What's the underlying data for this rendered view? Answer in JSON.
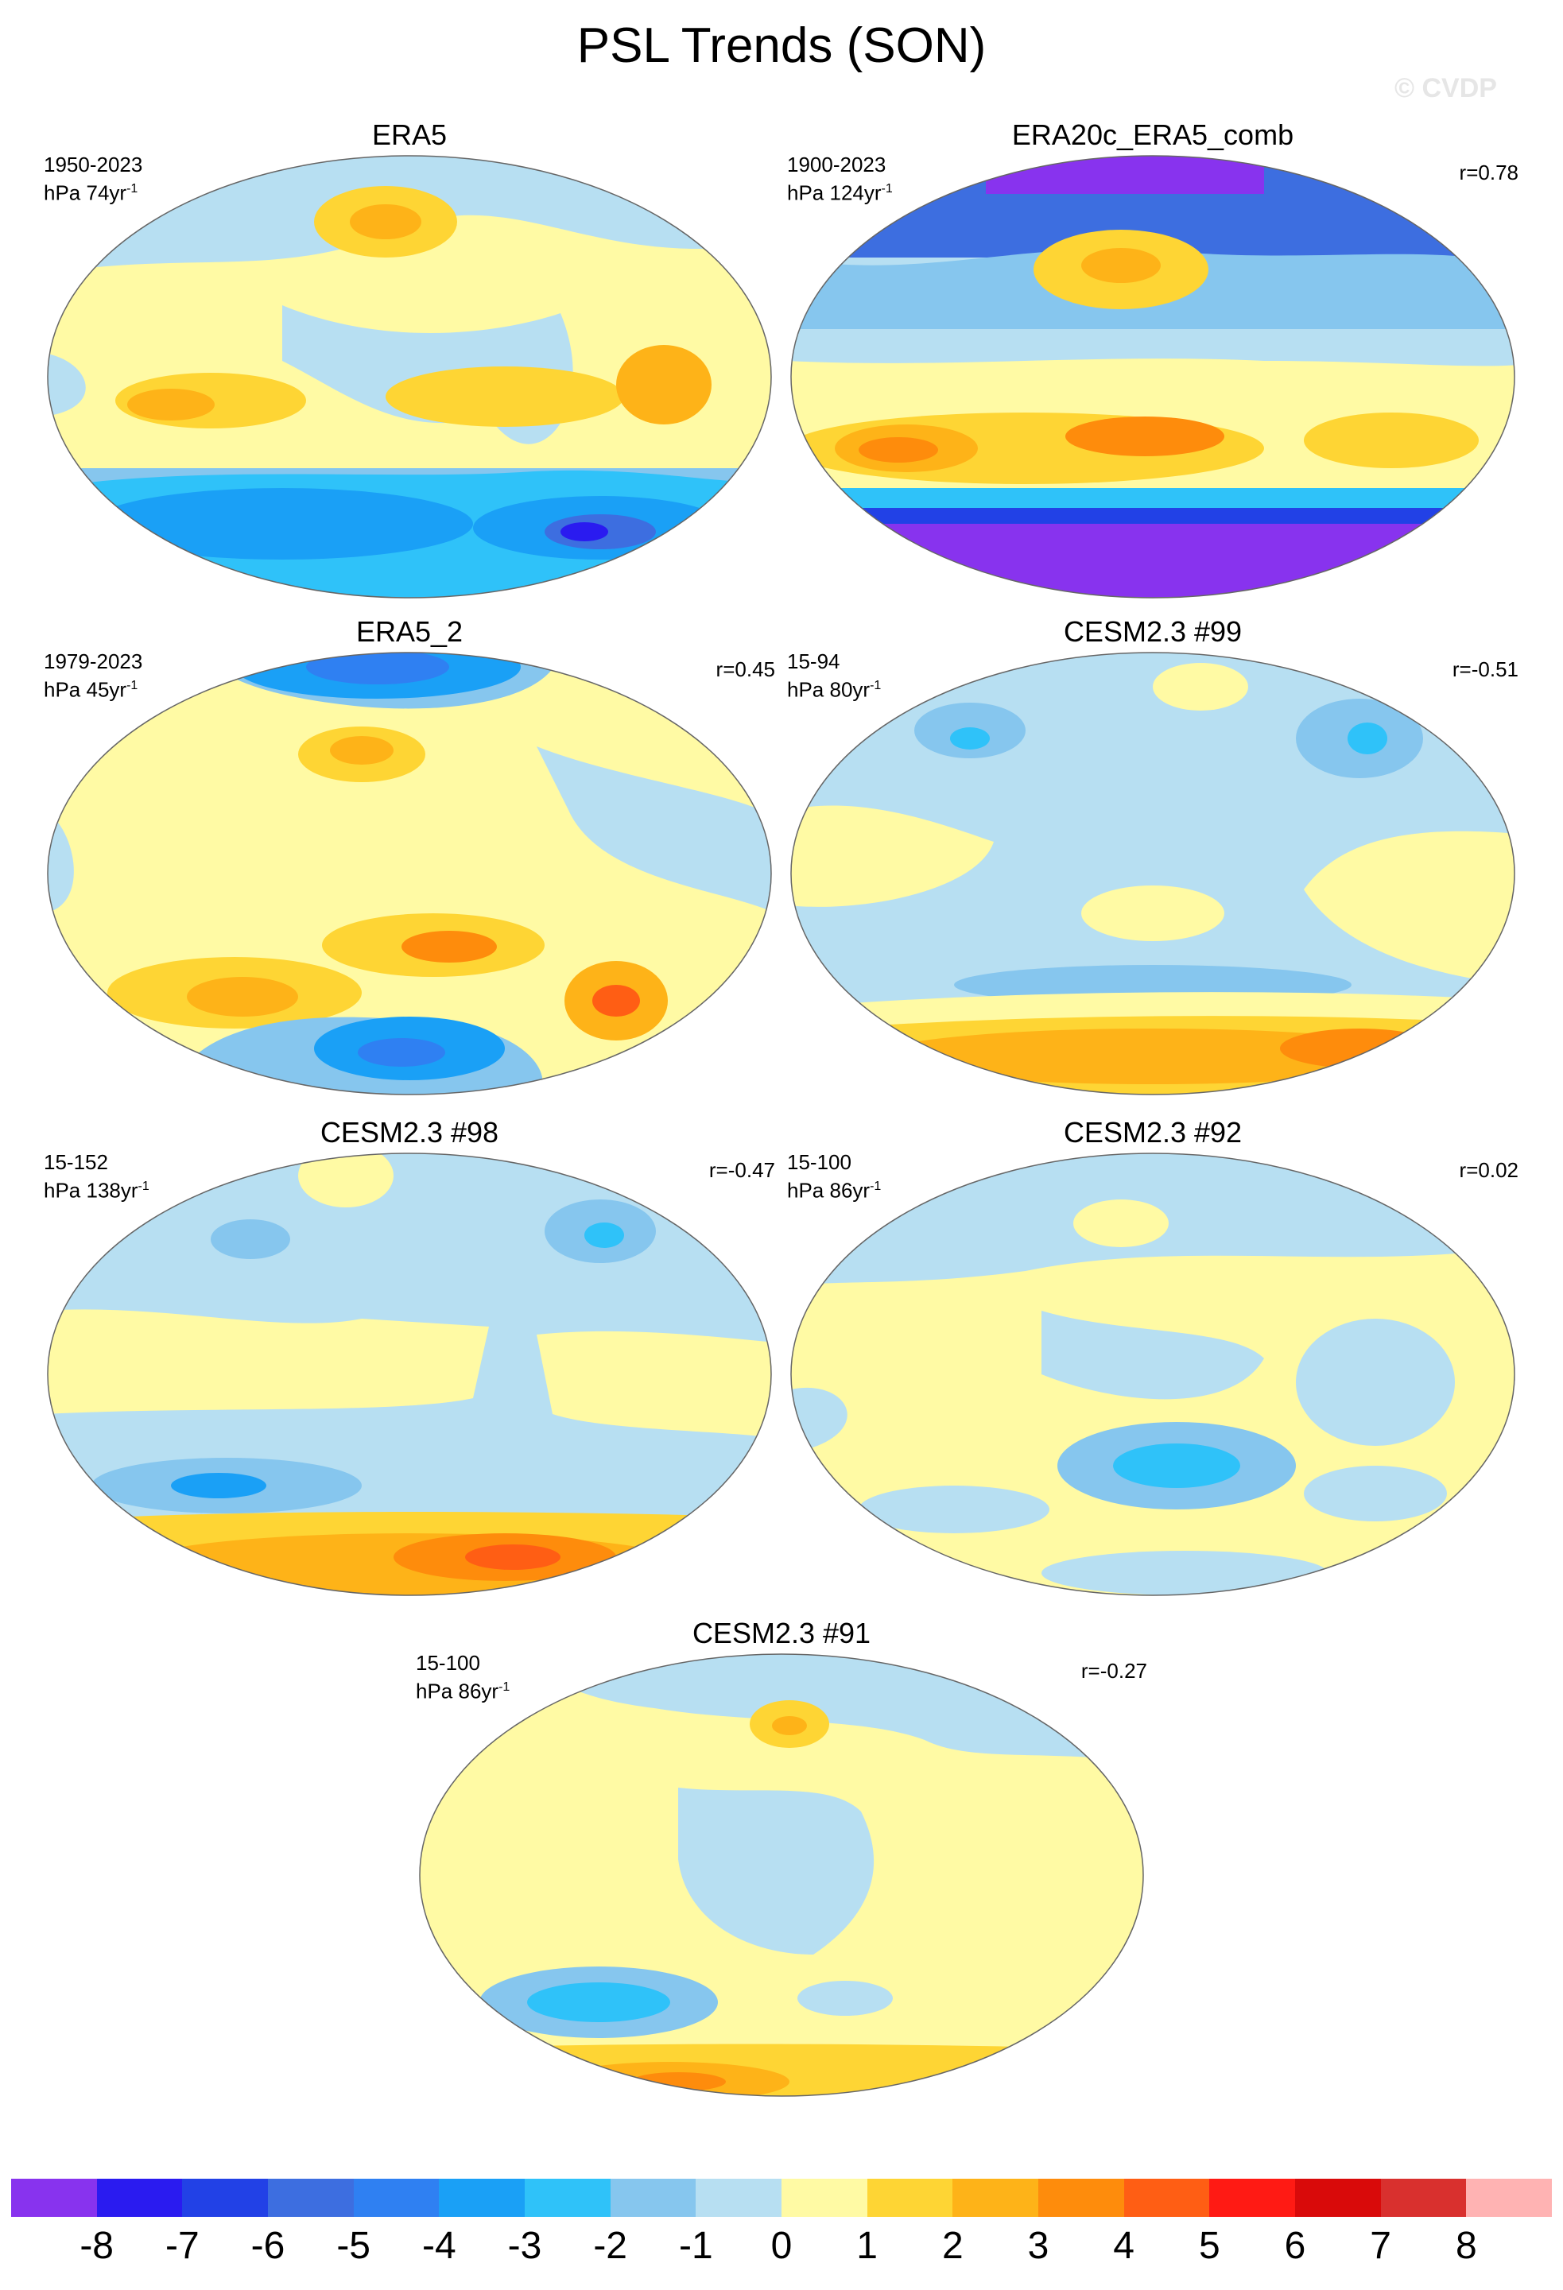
{
  "title": "PSL Trends (SON)",
  "watermark": "© CVDP",
  "colorbar": {
    "colors": [
      "#8833ee",
      "#2a1bf0",
      "#2241e6",
      "#3d6ee0",
      "#2f80f2",
      "#1aa0f6",
      "#2fc2f9",
      "#86c6ee",
      "#b7dff2",
      "#fffaa4",
      "#fed534",
      "#feb318",
      "#fe8c0c",
      "#ff5e14",
      "#ff1a14",
      "#d90a0a",
      "#d9302e",
      "#ffb3b3"
    ],
    "labels": [
      "-8",
      "-7",
      "-6",
      "-5",
      "-4",
      "-3",
      "-2",
      "-1",
      "0",
      "1",
      "2",
      "3",
      "4",
      "5",
      "6",
      "7",
      "8"
    ]
  },
  "panels": [
    {
      "title": "ERA5",
      "period": "1950-2023",
      "units_base": "hPa 74yr",
      "units_exp": "-1",
      "r": ""
    },
    {
      "title": "ERA20c_ERA5_comb",
      "period": "1900-2023",
      "units_base": "hPa 124yr",
      "units_exp": "-1",
      "r": "r=0.78"
    },
    {
      "title": "ERA5_2",
      "period": "1979-2023",
      "units_base": "hPa 45yr",
      "units_exp": "-1",
      "r": "r=0.45"
    },
    {
      "title": "CESM2.3 #99",
      "period": "15-94",
      "units_base": "hPa 80yr",
      "units_exp": "-1",
      "r": "r=-0.51"
    },
    {
      "title": "CESM2.3 #98",
      "period": "15-152",
      "units_base": "hPa 138yr",
      "units_exp": "-1",
      "r": "r=-0.47"
    },
    {
      "title": "CESM2.3 #92",
      "period": "15-100",
      "units_base": "hPa 86yr",
      "units_exp": "-1",
      "r": "r=0.02"
    },
    {
      "title": "CESM2.3 #91",
      "period": "15-100",
      "units_base": "hPa 86yr",
      "units_exp": "-1",
      "r": "r=-0.27"
    }
  ]
}
